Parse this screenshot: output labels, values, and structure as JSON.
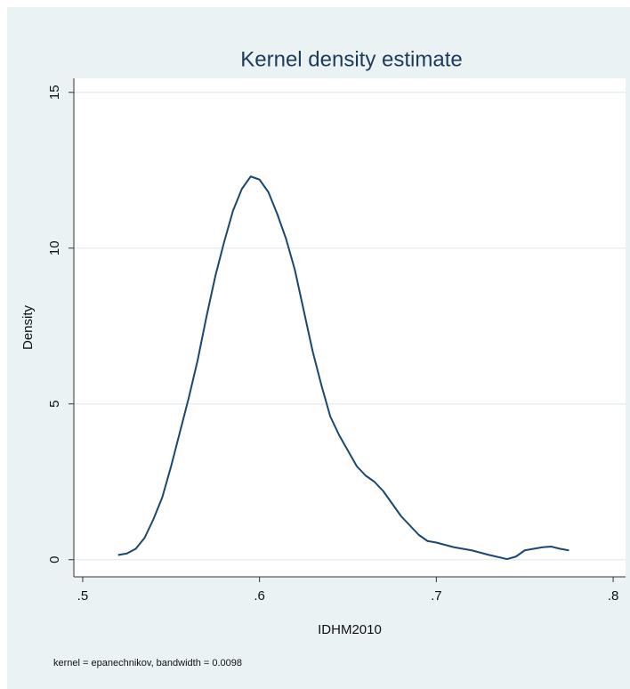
{
  "chart_data": {
    "type": "line",
    "title": "Kernel density estimate",
    "x_label": "IDHM2010",
    "y_label": "Density",
    "note": "kernel = epanechnikov, bandwidth = 0.0098",
    "x": [
      0.52,
      0.525,
      0.53,
      0.535,
      0.54,
      0.545,
      0.55,
      0.555,
      0.56,
      0.565,
      0.57,
      0.575,
      0.58,
      0.585,
      0.59,
      0.595,
      0.6,
      0.605,
      0.61,
      0.615,
      0.62,
      0.625,
      0.63,
      0.635,
      0.64,
      0.645,
      0.65,
      0.655,
      0.66,
      0.665,
      0.67,
      0.675,
      0.68,
      0.685,
      0.69,
      0.695,
      0.7,
      0.71,
      0.72,
      0.73,
      0.74,
      0.745,
      0.75,
      0.76,
      0.765,
      0.77,
      0.775
    ],
    "series": [
      {
        "name": "Density",
        "color": "#1a476f",
        "values": [
          0.15,
          0.2,
          0.35,
          0.7,
          1.3,
          2.0,
          3.0,
          4.1,
          5.2,
          6.4,
          7.8,
          9.1,
          10.2,
          11.2,
          11.9,
          12.3,
          12.2,
          11.8,
          11.1,
          10.3,
          9.3,
          8.0,
          6.7,
          5.6,
          4.6,
          4.0,
          3.5,
          3.0,
          2.7,
          2.5,
          2.2,
          1.8,
          1.4,
          1.1,
          0.8,
          0.6,
          0.55,
          0.4,
          0.3,
          0.15,
          0.02,
          0.1,
          0.3,
          0.4,
          0.42,
          0.35,
          0.3
        ]
      }
    ],
    "xlim": [
      0.495,
      0.807
    ],
    "ylim": [
      -0.55,
      15.45
    ],
    "xticks": [
      {
        "value": 0.5,
        "label": ".5"
      },
      {
        "value": 0.6,
        "label": ".6"
      },
      {
        "value": 0.7,
        "label": ".7"
      },
      {
        "value": 0.8,
        "label": ".8"
      }
    ],
    "yticks": [
      0,
      5,
      10,
      15
    ],
    "grid": true
  }
}
